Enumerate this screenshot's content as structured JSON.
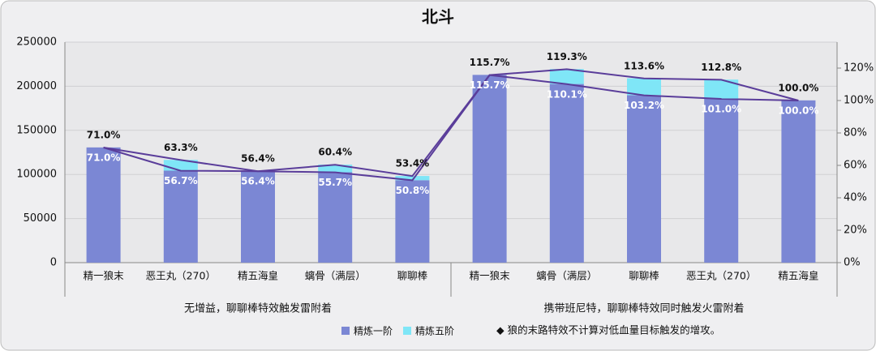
{
  "chart_data": {
    "type": "bar",
    "title": "北斗",
    "groups": [
      {
        "label": "无增益，聊聊棒特效触发雷附着",
        "categories": [
          "精一狼末",
          "恶王丸（270）",
          "精五海皇",
          "螭骨（满层）",
          "聊聊棒"
        ]
      },
      {
        "label": "携带班尼特，聊聊棒特效同时触发火雷附着",
        "categories": [
          "精一狼末",
          "螭骨（满层）",
          "聊聊棒",
          "恶王丸（270）",
          "精五海皇"
        ]
      }
    ],
    "series": [
      {
        "name": "精炼一阶",
        "color": "#7b87d4",
        "values": [
          130640,
          104328,
          103776,
          102488,
          93472,
          212888,
          202584,
          189888,
          185840,
          184000
        ]
      },
      {
        "name": "精炼五阶",
        "color": "#7fe6f7",
        "values": [
          0,
          12144,
          0,
          8648,
          4784,
          0,
          16928,
          19136,
          21712,
          0
        ]
      },
      {
        "type": "line",
        "axis": "y2",
        "color": "#5a3d9a",
        "label_color": "#111111",
        "values": [
          71.0,
          63.3,
          56.4,
          60.4,
          53.4,
          115.7,
          119.3,
          113.6,
          112.8,
          100.0
        ],
        "value_labels": [
          "71.0%",
          "63.3%",
          "56.4%",
          "60.4%",
          "53.4%",
          "115.7%",
          "119.3%",
          "113.6%",
          "112.8%",
          "100.0%"
        ]
      },
      {
        "type": "line",
        "axis": "y2",
        "color": "#5a3d9a",
        "label_color": "#ffffff",
        "values": [
          71.0,
          56.7,
          56.4,
          55.7,
          50.8,
          115.7,
          110.1,
          103.2,
          101.0,
          100.0
        ],
        "value_labels": [
          "71.0%",
          "56.7%",
          "56.4%",
          "55.7%",
          "50.8%",
          "115.7%",
          "110.1%",
          "103.2%",
          "101.0%",
          "100.0%"
        ]
      }
    ],
    "ylim": [
      0,
      250000
    ],
    "yticks": [
      0,
      50000,
      100000,
      150000,
      200000,
      250000
    ],
    "y2lim": [
      0,
      136
    ],
    "y2ticks": [
      {
        "value": 0,
        "label": "0%"
      },
      {
        "value": 20,
        "label": "20%"
      },
      {
        "value": 40,
        "label": "40%"
      },
      {
        "value": 60,
        "label": "60%"
      },
      {
        "value": 80,
        "label": "80%"
      },
      {
        "value": 100,
        "label": "100%"
      },
      {
        "value": 120,
        "label": "120%"
      }
    ],
    "grid": true,
    "note": "◆ 狼的末路特效不计算对低血量目标触发的增攻。"
  }
}
